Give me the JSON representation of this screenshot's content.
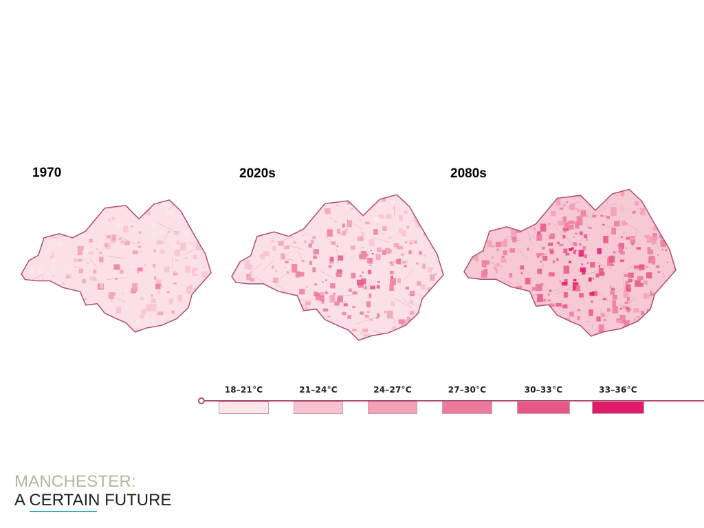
{
  "maps": [
    {
      "title": "1970"
    },
    {
      "title": "2020s"
    },
    {
      "title": "2080s"
    }
  ],
  "legend": [
    {
      "label": "18–21°C",
      "color": "#fde6ea"
    },
    {
      "label": "21–24°C",
      "color": "#f8c3d0"
    },
    {
      "label": "24–27°C",
      "color": "#f2a1b7"
    },
    {
      "label": "27–30°C",
      "color": "#ec7a9c"
    },
    {
      "label": "30–33°C",
      "color": "#e75687"
    },
    {
      "label": "33–36°C",
      "color": "#e01b6a"
    }
  ],
  "brand": {
    "line1": "MANCHESTER:",
    "line2": "A CERTAIN FUTURE"
  },
  "colors": {
    "outline": "#b04a73",
    "timeline": "#b04a73",
    "brand_accent": "#2fb0c8",
    "brand_muted": "#b8b49a"
  }
}
